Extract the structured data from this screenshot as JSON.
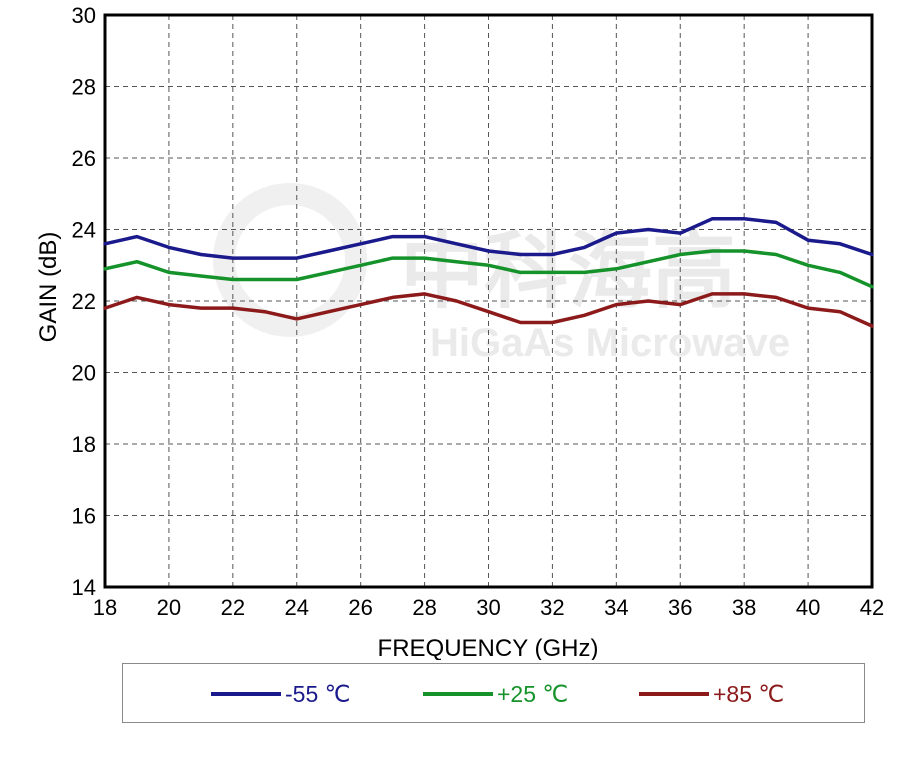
{
  "watermark": {
    "brand": "中科海高",
    "text": "HiGaAs Microwave"
  },
  "chart_data": {
    "type": "line",
    "title": "",
    "xlabel": "FREQUENCY (GHz)",
    "ylabel": "GAIN (dB)",
    "xlim": [
      18,
      42
    ],
    "ylim": [
      14,
      30
    ],
    "xticks": [
      18,
      20,
      22,
      24,
      26,
      28,
      30,
      32,
      34,
      36,
      38,
      40,
      42
    ],
    "yticks": [
      14,
      16,
      18,
      20,
      22,
      24,
      26,
      28,
      30
    ],
    "grid": true,
    "legend_position": "bottom",
    "x": [
      18,
      19,
      20,
      21,
      22,
      23,
      24,
      25,
      26,
      27,
      28,
      29,
      30,
      31,
      32,
      33,
      34,
      35,
      36,
      37,
      38,
      39,
      40,
      41,
      42
    ],
    "series": [
      {
        "name": "-55 ℃",
        "color": "#1a1a8c",
        "values": [
          23.6,
          23.8,
          23.5,
          23.3,
          23.2,
          23.2,
          23.2,
          23.4,
          23.6,
          23.8,
          23.8,
          23.6,
          23.4,
          23.3,
          23.3,
          23.5,
          23.9,
          24.0,
          23.9,
          24.3,
          24.3,
          24.2,
          23.7,
          23.6,
          23.3
        ]
      },
      {
        "name": "+25 ℃",
        "color": "#15922a",
        "values": [
          22.9,
          23.1,
          22.8,
          22.7,
          22.6,
          22.6,
          22.6,
          22.8,
          23.0,
          23.2,
          23.2,
          23.1,
          23.0,
          22.8,
          22.8,
          22.8,
          22.9,
          23.1,
          23.3,
          23.4,
          23.4,
          23.3,
          23.0,
          22.8,
          22.4
        ]
      },
      {
        "name": "+85 ℃",
        "color": "#8c1a1a",
        "values": [
          21.8,
          22.1,
          21.9,
          21.8,
          21.8,
          21.7,
          21.5,
          21.7,
          21.9,
          22.1,
          22.2,
          22.0,
          21.7,
          21.4,
          21.4,
          21.6,
          21.9,
          22.0,
          21.9,
          22.2,
          22.2,
          22.1,
          21.8,
          21.7,
          21.3
        ]
      }
    ]
  }
}
